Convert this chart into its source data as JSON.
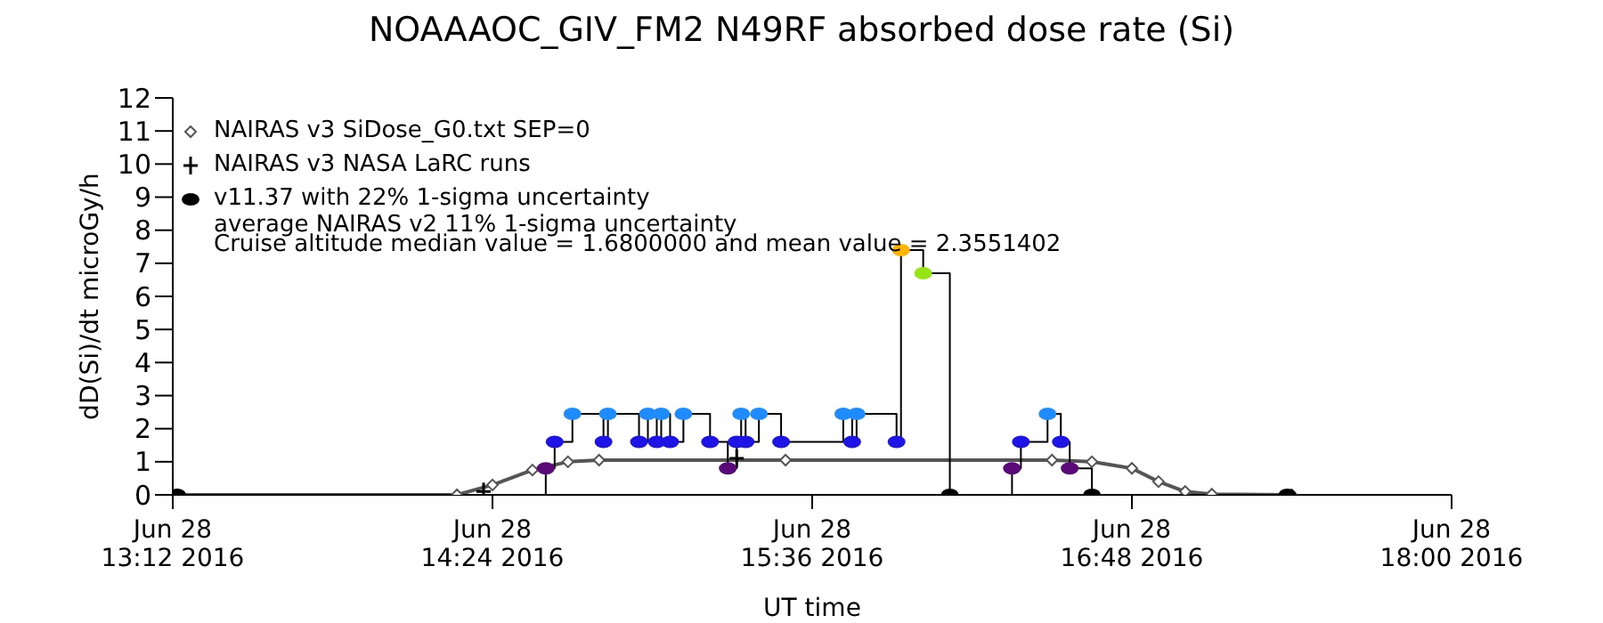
{
  "chart_data": {
    "type": "line",
    "title": "NOAAAOC_GIV_FM2   N49RF   absorbed dose rate (Si)",
    "xlabel": "UT time",
    "ylabel": "dD(Si)/dt microGy/h",
    "xlim": [
      "2016-06-28T13:12",
      "2016-06-28T18:00"
    ],
    "ylim": [
      0,
      12
    ],
    "xticks": [
      {
        "value": "2016-06-28T13:12",
        "label": "Jun 28\n13:12 2016"
      },
      {
        "value": "2016-06-28T14:24",
        "label": "Jun 28\n14:24 2016"
      },
      {
        "value": "2016-06-28T15:36",
        "label": "Jun 28\n15:36 2016"
      },
      {
        "value": "2016-06-28T16:48",
        "label": "Jun 28\n16:48 2016"
      },
      {
        "value": "2016-06-28T18:00",
        "label": "Jun 28\n18:00 2016"
      }
    ],
    "yticks": [
      0,
      1,
      2,
      3,
      4,
      5,
      6,
      7,
      8,
      9,
      10,
      11,
      12
    ],
    "grid": false,
    "legend": "top left",
    "line_style": "solid",
    "series": [
      {
        "name": "NAIRAS v3 SiDose_G0.txt SEP=0",
        "marker": "diamond",
        "color": "#555555",
        "x": [
          "2016-06-28T13:13",
          "2016-06-28T14:16",
          "2016-06-28T14:24",
          "2016-06-28T14:33",
          "2016-06-28T14:41",
          "2016-06-28T14:48",
          "2016-06-28T15:30",
          "2016-06-28T16:30",
          "2016-06-28T16:39",
          "2016-06-28T16:48",
          "2016-06-28T16:54",
          "2016-06-28T17:00",
          "2016-06-28T17:06",
          "2016-06-28T17:24"
        ],
        "values": [
          0,
          0,
          0.3,
          0.75,
          1.0,
          1.05,
          1.05,
          1.05,
          1.0,
          0.8,
          0.4,
          0.1,
          0.02,
          0
        ]
      },
      {
        "name": "NAIRAS v3 NASA LaRC runs",
        "type": "scatter",
        "marker": "cross",
        "color": "#000000",
        "x": [
          "2016-06-28T14:22",
          "2016-06-28T15:19"
        ],
        "values": [
          0.1,
          1.1
        ]
      },
      {
        "name": "v11.37 with 22% 1-sigma uncertainty",
        "type": "step",
        "marker": "circle",
        "color": "#000000",
        "x": [
          "2016-06-28T13:13",
          "2016-06-28T14:36",
          "2016-06-28T14:38",
          "2016-06-28T14:42",
          "2016-06-28T14:49",
          "2016-06-28T14:50",
          "2016-06-28T14:57",
          "2016-06-28T14:59",
          "2016-06-28T15:01",
          "2016-06-28T15:02",
          "2016-06-28T15:04",
          "2016-06-28T15:07",
          "2016-06-28T15:13",
          "2016-06-28T15:17",
          "2016-06-28T15:19",
          "2016-06-28T15:20",
          "2016-06-28T15:21",
          "2016-06-28T15:24",
          "2016-06-28T15:29",
          "2016-06-28T15:43",
          "2016-06-28T15:45",
          "2016-06-28T15:46",
          "2016-06-28T15:55",
          "2016-06-28T15:56",
          "2016-06-28T16:01",
          "2016-06-28T16:07",
          "2016-06-28T16:21",
          "2016-06-28T16:23",
          "2016-06-28T16:29",
          "2016-06-28T16:32",
          "2016-06-28T16:34",
          "2016-06-28T16:39",
          "2016-06-28T17:23"
        ],
        "values": [
          0,
          0.8,
          1.6,
          2.45,
          1.6,
          2.45,
          1.6,
          2.45,
          1.6,
          2.45,
          1.6,
          2.45,
          1.6,
          0.8,
          1.6,
          2.45,
          1.6,
          2.45,
          1.6,
          2.45,
          1.6,
          2.45,
          1.6,
          7.4,
          6.7,
          0,
          0.8,
          1.6,
          2.45,
          1.6,
          0.8,
          0,
          0
        ],
        "colors": [
          "#000000",
          "#5a0a78",
          "#1e14e6",
          "#1e8cff",
          "#1e14e6",
          "#1e8cff",
          "#1e14e6",
          "#1e8cff",
          "#1e14e6",
          "#1e8cff",
          "#1e14e6",
          "#1e8cff",
          "#1e14e6",
          "#5a0a78",
          "#1e14e6",
          "#1e8cff",
          "#1e14e6",
          "#1e8cff",
          "#1e14e6",
          "#1e8cff",
          "#1e14e6",
          "#1e8cff",
          "#1e14e6",
          "#ffb400",
          "#96e614",
          "#000000",
          "#5a0a78",
          "#1e14e6",
          "#1e8cff",
          "#1e14e6",
          "#5a0a78",
          "#000000",
          "#000000"
        ]
      }
    ],
    "annotations": [
      "average NAIRAS v2 11% 1-sigma uncertainty",
      "Cruise altitude median value = 1.6800000 and mean value = 2.3551402"
    ]
  }
}
